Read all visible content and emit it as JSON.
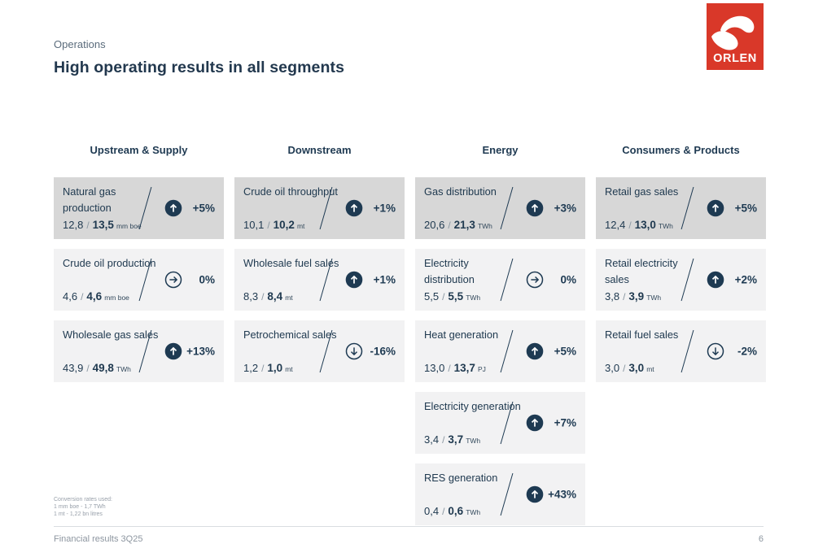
{
  "page": {
    "eyebrow": "Operations",
    "title": "High operating results in all segments",
    "value_separator": "/",
    "notes": [
      "Conversion rates used:",
      "1 mm boe - 1,7 TWh",
      "1 mt -  1,22 bn litres"
    ],
    "footer_left": "Financial results 3Q25",
    "page_number": "6"
  },
  "logo": {
    "text": "ORLEN",
    "color": "#d93829"
  },
  "colors": {
    "navy": "#1e3a52",
    "card_bg": "#f2f2f3",
    "card_bg_highlight": "#d7d7d7",
    "logo_red": "#d93829",
    "footer_gray": "#8d96a0"
  },
  "columns": [
    {
      "label": "Upstream & Supply",
      "cards": [
        {
          "title": "Natural gas production",
          "prev": "12,8",
          "curr": "13,5",
          "unit": "mm boe",
          "trend": "up",
          "change": "+5%",
          "highlight": true
        },
        {
          "title": "Crude oil production",
          "prev": "4,6",
          "curr": "4,6",
          "unit": "mm boe",
          "trend": "flat",
          "change": "0%",
          "highlight": false
        },
        {
          "title": "Wholesale gas sales",
          "prev": "43,9",
          "curr": "49,8",
          "unit": "TWh",
          "trend": "up",
          "change": "+13%",
          "highlight": false
        }
      ]
    },
    {
      "label": "Downstream",
      "cards": [
        {
          "title": "Crude oil throughput",
          "prev": "10,1",
          "curr": "10,2",
          "unit": "mt",
          "trend": "up",
          "change": "+1%",
          "highlight": true
        },
        {
          "title": "Wholesale fuel sales",
          "prev": "8,3",
          "curr": "8,4",
          "unit": "mt",
          "trend": "up",
          "change": "+1%",
          "highlight": false
        },
        {
          "title": "Petrochemical sales",
          "prev": "1,2",
          "curr": "1,0",
          "unit": "mt",
          "trend": "down",
          "change": "-16%",
          "highlight": false
        }
      ]
    },
    {
      "label": "Energy",
      "cards": [
        {
          "title": "Gas distribution",
          "prev": "20,6",
          "curr": "21,3",
          "unit": "TWh",
          "trend": "up",
          "change": "+3%",
          "highlight": true
        },
        {
          "title": "Electricity distribution",
          "prev": "5,5",
          "curr": "5,5",
          "unit": "TWh",
          "trend": "flat",
          "change": "0%",
          "highlight": false
        },
        {
          "title": "Heat generation",
          "prev": "13,0",
          "curr": "13,7",
          "unit": "PJ",
          "trend": "up",
          "change": "+5%",
          "highlight": false
        },
        {
          "title": "Electricity generation",
          "prev": "3,4",
          "curr": "3,7",
          "unit": "TWh",
          "trend": "up",
          "change": "+7%",
          "highlight": false
        },
        {
          "title": "RES generation",
          "prev": "0,4",
          "curr": "0,6",
          "unit": "TWh",
          "trend": "up",
          "change": "+43%",
          "highlight": false
        }
      ]
    },
    {
      "label": "Consumers & Products",
      "cards": [
        {
          "title": "Retail gas sales",
          "prev": "12,4",
          "curr": "13,0",
          "unit": "TWh",
          "trend": "up",
          "change": "+5%",
          "highlight": true
        },
        {
          "title": "Retail electricity sales",
          "prev": "3,8",
          "curr": "3,9",
          "unit": "TWh",
          "trend": "up",
          "change": "+2%",
          "highlight": false
        },
        {
          "title": "Retail fuel sales",
          "prev": "3,0",
          "curr": "3,0",
          "unit": "mt",
          "trend": "down",
          "change": "-2%",
          "highlight": false
        }
      ]
    }
  ],
  "layout": {
    "column_lefts": [
      66,
      288,
      510,
      732
    ]
  }
}
